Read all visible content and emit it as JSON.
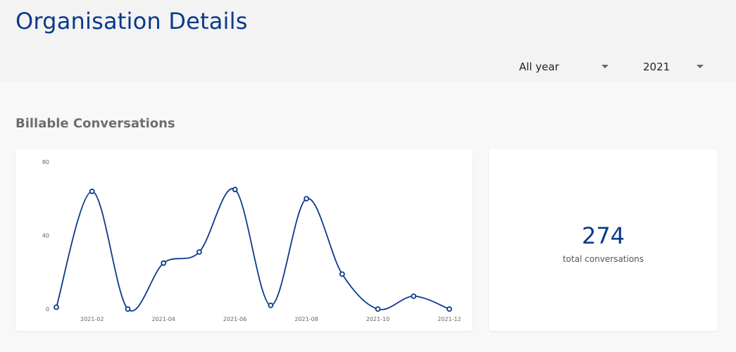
{
  "header": {
    "title": "Organisation Details",
    "period_select": {
      "value": "All year"
    },
    "year_select": {
      "value": "2021"
    }
  },
  "section": {
    "title": "Billable Conversations"
  },
  "summary": {
    "total_value": "274",
    "total_label": "total conversations"
  },
  "colors": {
    "accent": "#0b3a8c"
  },
  "chart_data": {
    "type": "line",
    "x": [
      "2021-01",
      "2021-02",
      "2021-03",
      "2021-04",
      "2021-05",
      "2021-06",
      "2021-07",
      "2021-08",
      "2021-09",
      "2021-10",
      "2021-11",
      "2021-12"
    ],
    "x_tick_labels": [
      "2021-02",
      "2021-04",
      "2021-06",
      "2021-08",
      "2021-10",
      "2021-12"
    ],
    "y_tick_labels": [
      "0",
      "40",
      "80"
    ],
    "values": [
      1,
      64,
      0,
      25,
      31,
      65,
      2,
      60,
      19,
      0,
      7,
      0
    ],
    "ylim": [
      0,
      80
    ],
    "line_style": "smooth",
    "markers": "hollow-circle",
    "grid": false,
    "legend": false
  }
}
